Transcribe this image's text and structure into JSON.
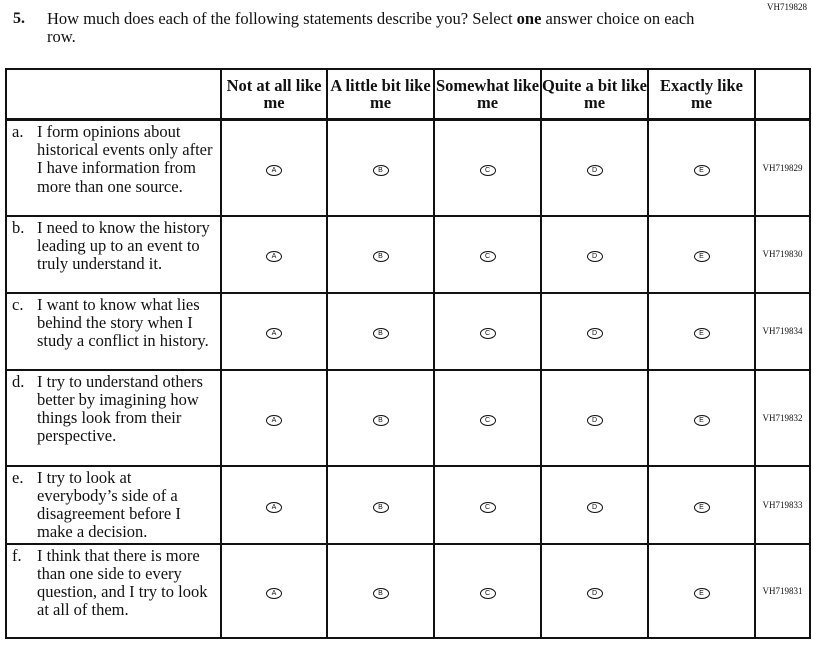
{
  "item_id": "VH719828",
  "question": {
    "number": "5.",
    "text_before": "How much does each of the following statements describe you? Select ",
    "text_bold": "one",
    "text_after": " answer choice on each row."
  },
  "columns": [
    "Not at all like me",
    "A little bit like me",
    "Somewhat like me",
    "Quite a bit like me",
    "Exactly like me"
  ],
  "choice_letters": [
    "A",
    "B",
    "C",
    "D",
    "E"
  ],
  "rows": [
    {
      "letter": "a.",
      "text": "I form opinions about historical events only after I have information from more than one source.",
      "code": "VH719829"
    },
    {
      "letter": "b.",
      "text": "I need to know the history leading up to an event to truly understand it.",
      "code": "VH719830"
    },
    {
      "letter": "c.",
      "text": "I want to know what lies behind the story when I study a conflict in history.",
      "code": "VH719834"
    },
    {
      "letter": "d.",
      "text": "I try to understand others better by imagining how things look from their perspective.",
      "code": "VH719832"
    },
    {
      "letter": "e.",
      "text": "I try to look at everybody’s side of a disagreement before I make a decision.",
      "code": "VH719833"
    },
    {
      "letter": "f.",
      "text": "I think that there is more than one side to every question, and I try to look at all of them.",
      "code": "VH719831"
    }
  ]
}
